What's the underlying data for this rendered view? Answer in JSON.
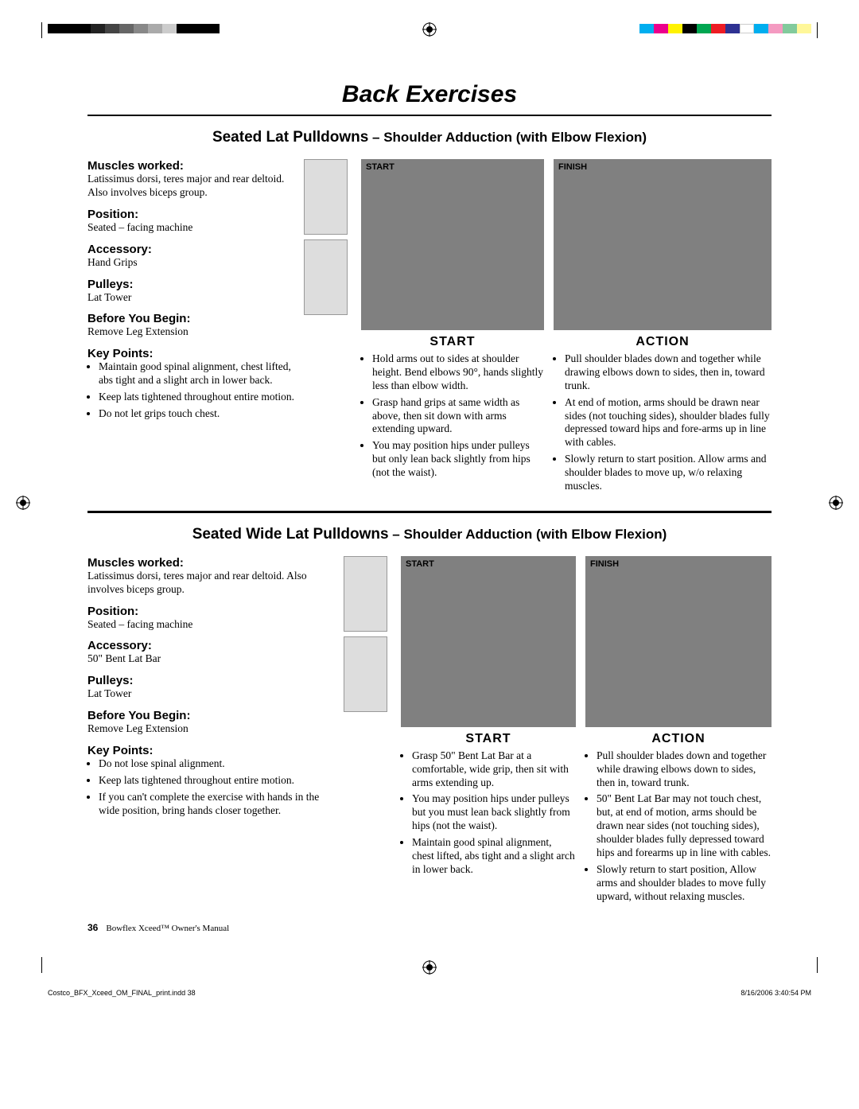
{
  "page": {
    "title": "Back Exercises",
    "number": "36",
    "manual": "Bowflex Xceed™ Owner's Manual",
    "print_file": "Costco_BFX_Xceed_OM_FINAL_print.indd   38",
    "print_time": "8/16/2006   3:40:54 PM"
  },
  "printer_colors_left": [
    "#000000",
    "#000000",
    "#000000",
    "#222222",
    "#444444",
    "#666666",
    "#888888",
    "#aaaaaa",
    "#cccccc",
    "#000000",
    "#000000",
    "#000000"
  ],
  "printer_colors_right": [
    "#00aeef",
    "#ec008c",
    "#fff200",
    "#000000",
    "#00a651",
    "#ed1c24",
    "#2e3192",
    "#ffffff",
    "#00aeef",
    "#f49ac1",
    "#82ca9c",
    "#fff799"
  ],
  "exercise1": {
    "title_main": "Seated Lat Pulldowns",
    "title_sub": " – Shoulder Adduction (with Elbow Flexion)",
    "muscles_label": "Muscles worked:",
    "muscles_text": "Latissimus dorsi, teres major and rear deltoid. Also involves biceps group.",
    "position_label": "Position:",
    "position_text": "Seated – facing machine",
    "accessory_label": "Accessory:",
    "accessory_text": "Hand Grips",
    "pulleys_label": "Pulleys:",
    "pulleys_text": "Lat Tower",
    "before_label": "Before You Begin:",
    "before_text": "Remove Leg Extension",
    "keypoints_label": "Key Points:",
    "keypoints": [
      "Maintain good spinal alignment, chest lifted, abs tight and a slight arch in lower back.",
      "Keep lats tightened throughout entire motion.",
      "Do not let grips touch chest."
    ],
    "start_heading": "START",
    "start_label": "START",
    "finish_label": "FINISH",
    "start_items": [
      "Hold arms out to sides at shoulder height. Bend elbows 90°, hands slightly less than elbow width.",
      "Grasp hand grips at same width as above, then sit down with arms extending upward.",
      "You may position hips under pulleys but only lean back slightly from hips (not the waist)."
    ],
    "action_heading": "ACTION",
    "action_items": [
      "Pull shoulder blades down and together while drawing elbows down to sides, then in, toward trunk.",
      "At end of motion, arms should be drawn near sides (not touching sides), shoulder blades fully depressed toward hips and fore-arms up in line with cables.",
      "Slowly return to start position. Allow arms and shoulder blades to move up, w/o relaxing muscles."
    ]
  },
  "exercise2": {
    "title_main": "Seated Wide Lat Pulldowns",
    "title_sub": " – Shoulder Adduction (with Elbow Flexion)",
    "muscles_label": "Muscles worked:",
    "muscles_text": "Latissimus dorsi, teres major and rear deltoid. Also involves biceps group.",
    "position_label": "Position:",
    "position_text": "Seated – facing machine",
    "accessory_label": "Accessory:",
    "accessory_text": "50\" Bent Lat Bar",
    "pulleys_label": "Pulleys:",
    "pulleys_text": "Lat Tower",
    "before_label": "Before You Begin:",
    "before_text": "Remove Leg Extension",
    "keypoints_label": "Key Points:",
    "keypoints": [
      "Do not lose spinal alignment.",
      "Keep lats tightened throughout entire motion.",
      "If you can't complete the exercise with hands in the wide position, bring hands closer together."
    ],
    "start_heading": "START",
    "start_label": "START",
    "finish_label": "FINISH",
    "start_items": [
      "Grasp 50\" Bent Lat Bar at a comfortable, wide grip, then sit with arms extending up.",
      "You may position hips under pulleys but you must lean back slightly from hips (not the waist).",
      "Maintain good spinal alignment, chest lifted, abs tight and a slight arch in lower back."
    ],
    "action_heading": "ACTION",
    "action_items": [
      "Pull shoulder blades down and together while drawing elbows down to sides, then in, toward trunk.",
      "50\" Bent Lat Bar may not touch chest, but, at end of motion, arms should be drawn near sides (not touching sides), shoulder blades fully depressed toward hips and forearms up in line with cables.",
      "Slowly return to start position, Allow arms and shoulder blades to move fully upward, without relaxing muscles."
    ]
  }
}
